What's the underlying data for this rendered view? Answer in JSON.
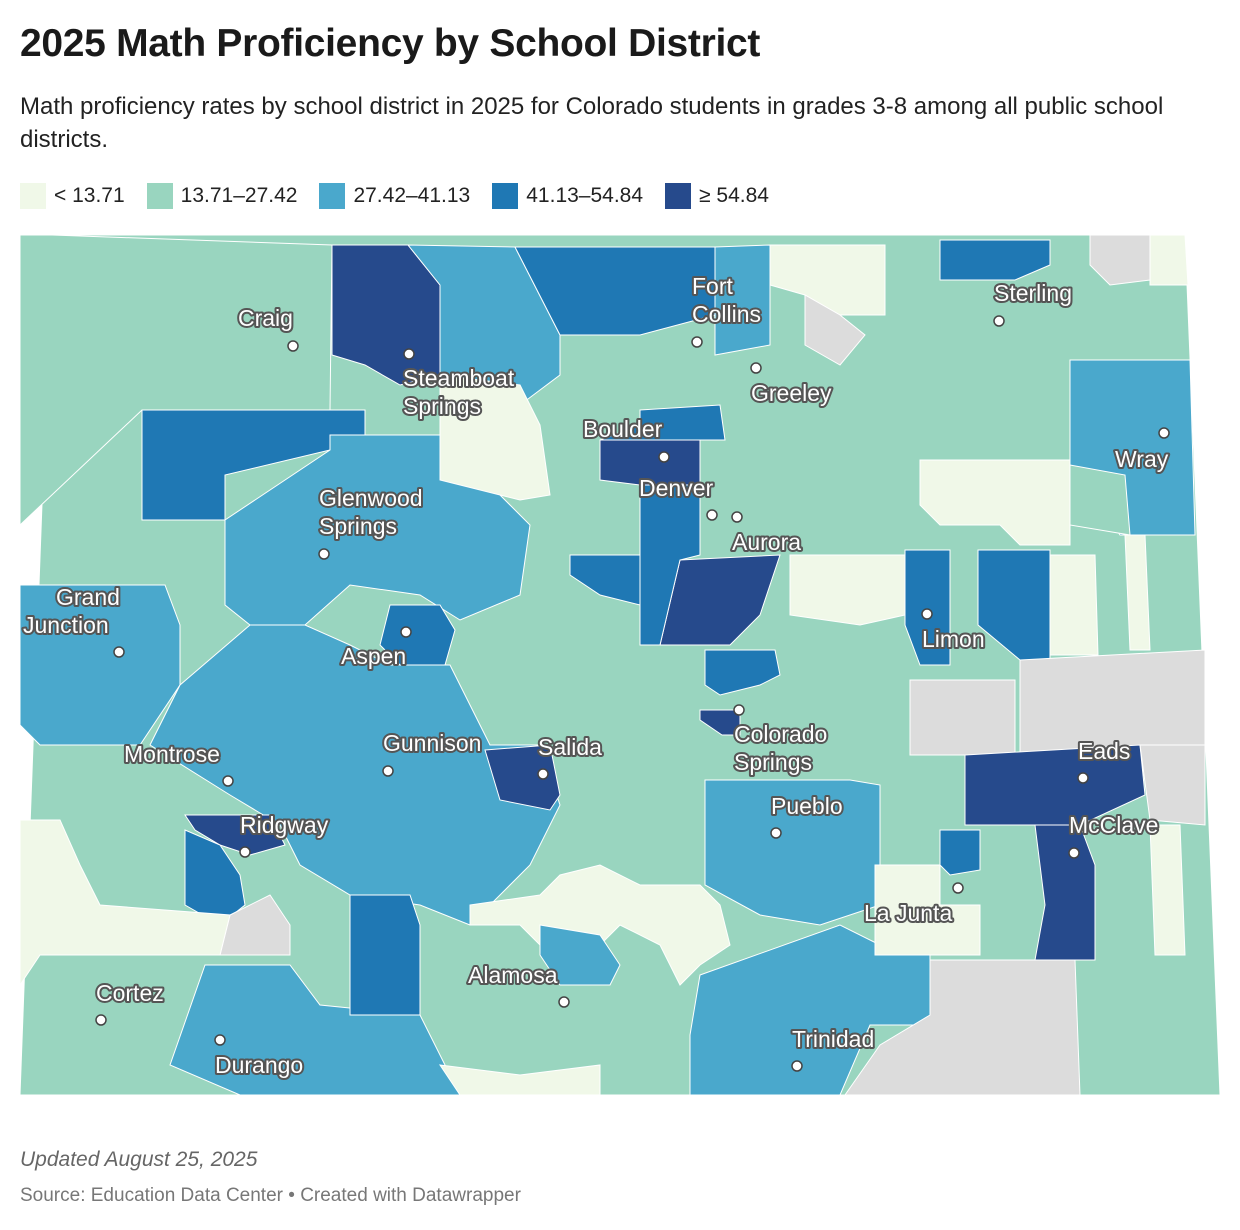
{
  "title": "2025 Math Proficiency by School District",
  "subtitle": "Math proficiency rates by school district in 2025 for Colorado students in grades 3-8 among all public school districts.",
  "legend": [
    {
      "label": "< 13.71",
      "color": "#f0f8e8"
    },
    {
      "label": "13.71–27.42",
      "color": "#99d5bf"
    },
    {
      "label": "27.42–41.13",
      "color": "#4aa8cc"
    },
    {
      "label": "41.13–54.84",
      "color": "#1f78b4"
    },
    {
      "label": "≥ 54.84",
      "color": "#264a8c"
    }
  ],
  "no_data_color": "#dcdcdc",
  "cities": [
    {
      "name": "Craig",
      "lines": [
        "Craig"
      ]
    },
    {
      "name": "Steamboat Springs",
      "lines": [
        "Steamboat",
        "Springs"
      ]
    },
    {
      "name": "Fort Collins",
      "lines": [
        "Fort",
        "Collins"
      ]
    },
    {
      "name": "Sterling",
      "lines": [
        "Sterling"
      ]
    },
    {
      "name": "Greeley",
      "lines": [
        "Greeley"
      ]
    },
    {
      "name": "Boulder",
      "lines": [
        "Boulder"
      ]
    },
    {
      "name": "Wray",
      "lines": [
        "Wray"
      ]
    },
    {
      "name": "Denver",
      "lines": [
        "Denver"
      ]
    },
    {
      "name": "Aurora",
      "lines": [
        "Aurora"
      ]
    },
    {
      "name": "Glenwood Springs",
      "lines": [
        "Glenwood",
        "Springs"
      ]
    },
    {
      "name": "Grand Junction",
      "lines": [
        "Grand",
        "Junction"
      ]
    },
    {
      "name": "Aspen",
      "lines": [
        "Aspen"
      ]
    },
    {
      "name": "Limon",
      "lines": [
        "Limon"
      ]
    },
    {
      "name": "Colorado Springs",
      "lines": [
        "Colorado",
        "Springs"
      ]
    },
    {
      "name": "Montrose",
      "lines": [
        "Montrose"
      ]
    },
    {
      "name": "Gunnison",
      "lines": [
        "Gunnison"
      ]
    },
    {
      "name": "Salida",
      "lines": [
        "Salida"
      ]
    },
    {
      "name": "Eads",
      "lines": [
        "Eads"
      ]
    },
    {
      "name": "Pueblo",
      "lines": [
        "Pueblo"
      ]
    },
    {
      "name": "Ridgway",
      "lines": [
        "Ridgway"
      ]
    },
    {
      "name": "McClave",
      "lines": [
        "McClave"
      ]
    },
    {
      "name": "La Junta",
      "lines": [
        "La Junta"
      ]
    },
    {
      "name": "Alamosa",
      "lines": [
        "Alamosa"
      ]
    },
    {
      "name": "Cortez",
      "lines": [
        "Cortez"
      ]
    },
    {
      "name": "Durango",
      "lines": [
        "Durango"
      ]
    },
    {
      "name": "Trinidad",
      "lines": [
        "Trinidad"
      ]
    }
  ],
  "footer": {
    "updated": "Updated August 25, 2025",
    "source": "Source: Education Data Center • Created with Datawrapper"
  }
}
